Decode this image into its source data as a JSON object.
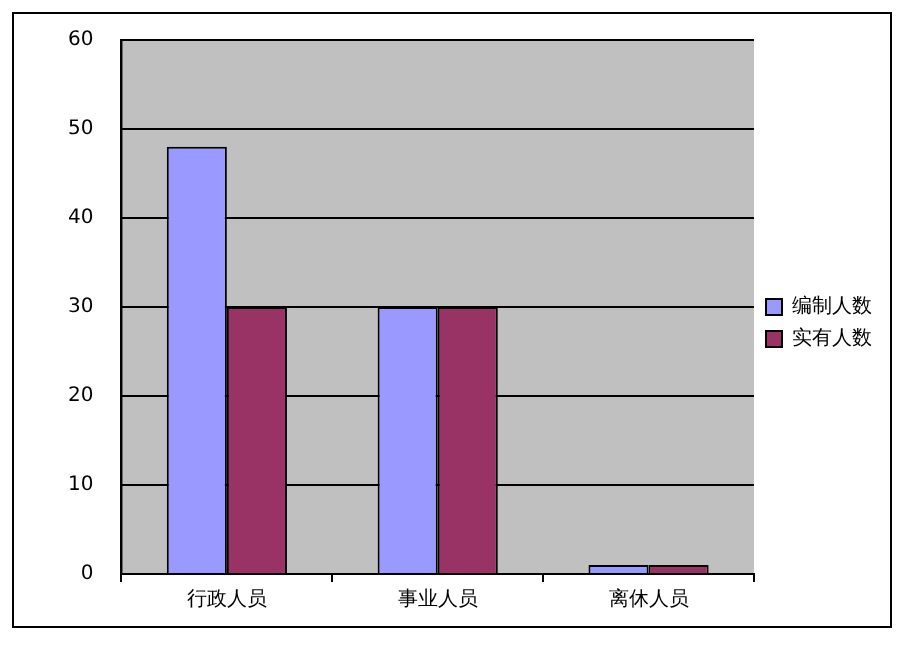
{
  "chart_data": {
    "type": "bar",
    "categories": [
      "行政人员",
      "事业人员",
      "离休人员"
    ],
    "series": [
      {
        "name": "编制人数",
        "color": "#9999ff",
        "values": [
          48,
          30,
          1
        ]
      },
      {
        "name": "实有人数",
        "color": "#993366",
        "values": [
          30,
          30,
          1
        ]
      }
    ],
    "ylim": [
      0,
      60
    ],
    "yticks": [
      0,
      10,
      20,
      30,
      40,
      50,
      60
    ],
    "grid": "y",
    "legend": "right"
  }
}
